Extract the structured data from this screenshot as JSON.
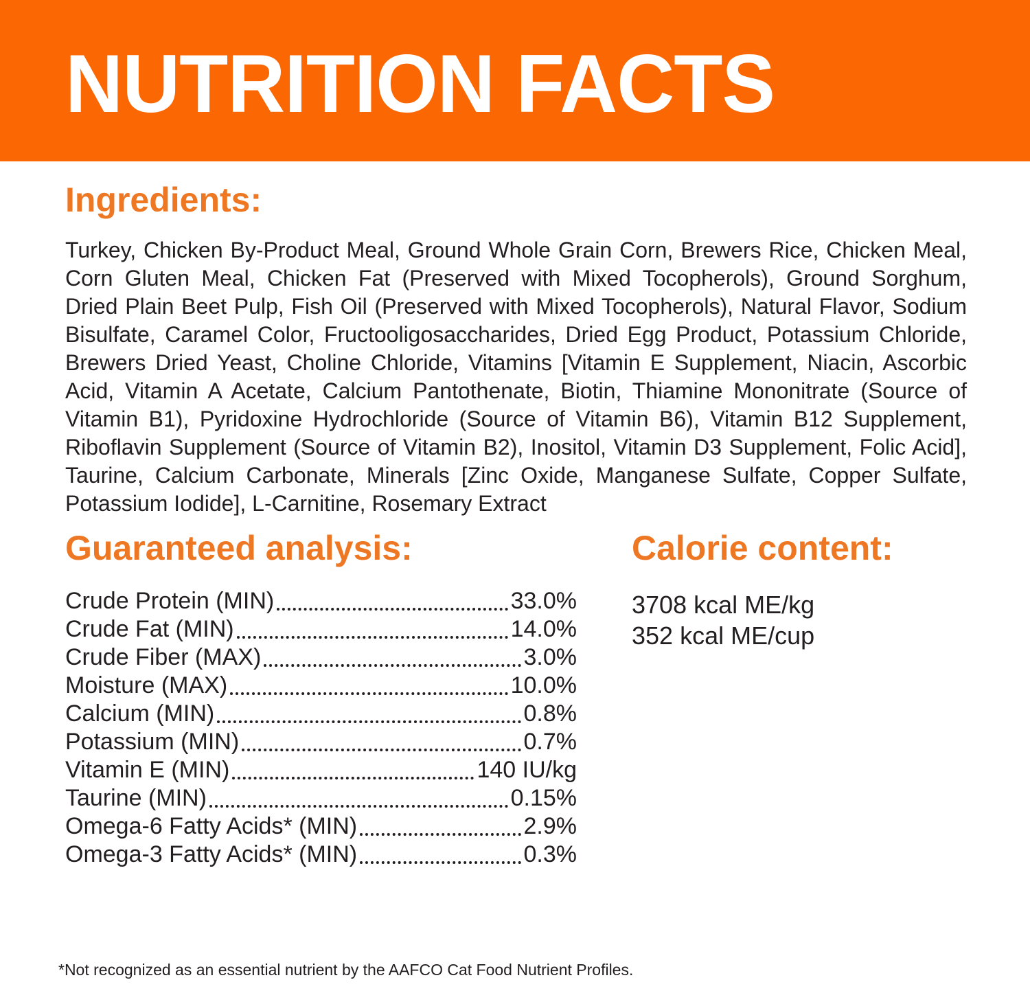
{
  "colors": {
    "banner_bg": "#fb6702",
    "heading_orange": "#ee7723",
    "body_text": "#231f20",
    "banner_text": "#ffffff"
  },
  "header": {
    "title": "NUTRITION FACTS"
  },
  "ingredients": {
    "heading": "Ingredients:",
    "text": "Turkey, Chicken By-Product Meal, Ground Whole Grain Corn, Brewers Rice, Chicken Meal, Corn Gluten Meal, Chicken Fat (Preserved with Mixed Tocopherols), Ground Sorghum, Dried Plain Beet Pulp, Fish Oil (Preserved with Mixed Tocopherols), Natural Flavor, Sodium Bisulfate, Caramel Color, Fructooligosaccharides, Dried Egg Product, Potassium Chloride, Brewers Dried Yeast, Choline Chloride, Vitamins [Vitamin E Supplement, Niacin, Ascorbic Acid, Vitamin A Acetate, Calcium Pantothenate, Biotin, Thiamine Mononitrate (Source of Vitamin B1), Pyridoxine Hydrochloride (Source of Vitamin B6), Vitamin B12 Supplement, Riboflavin Supplement (Source of Vitamin B2), Inositol, Vitamin D3 Supplement, Folic Acid], Taurine, Calcium Carbonate, Minerals [Zinc Oxide, Manganese Sulfate, Copper Sulfate, Potassium Iodide], L-Carnitine, Rosemary Extract"
  },
  "guaranteed_analysis": {
    "heading": "Guaranteed analysis:",
    "rows": [
      {
        "label": "Crude Protein (MIN)",
        "value": "33.0%"
      },
      {
        "label": "Crude Fat (MIN)",
        "value": "14.0%"
      },
      {
        "label": "Crude Fiber (MAX)",
        "value": "3.0%"
      },
      {
        "label": "Moisture (MAX)",
        "value": "10.0%"
      },
      {
        "label": "Calcium (MIN)",
        "value": "0.8%"
      },
      {
        "label": "Potassium (MIN)",
        "value": "0.7%"
      },
      {
        "label": "Vitamin E (MIN)",
        "value": "140 IU/kg"
      },
      {
        "label": "Taurine (MIN)",
        "value": "0.15%"
      },
      {
        "label": "Omega-6 Fatty Acids* (MIN)",
        "value": "2.9%"
      },
      {
        "label": "Omega-3 Fatty Acids* (MIN)",
        "value": "0.3%"
      }
    ]
  },
  "calorie_content": {
    "heading": "Calorie content:",
    "lines": [
      "3708 kcal ME/kg",
      "352 kcal ME/cup"
    ]
  },
  "footnote": "*Not recognized as an essential nutrient by the AAFCO Cat Food Nutrient Profiles."
}
